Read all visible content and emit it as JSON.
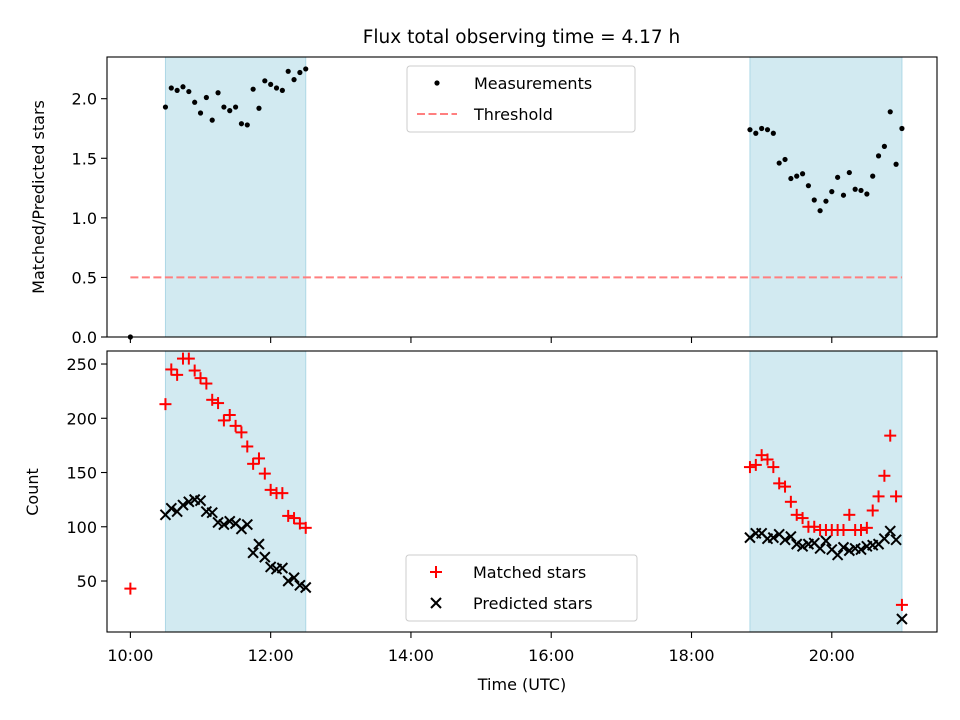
{
  "figure": {
    "title": "Flux total observing time = 4.17 h"
  },
  "chart_data": [
    {
      "type": "scatter",
      "ylabel": "Matched/Predicted stars",
      "xlim": [
        "09:40",
        "21:30"
      ],
      "ylim": [
        0,
        2.35
      ],
      "yticks": [
        0.0,
        0.5,
        1.0,
        1.5,
        2.0
      ],
      "ytick_labels": [
        "0.0",
        "0.5",
        "1.0",
        "1.5",
        "2.0"
      ],
      "shaded_intervals": [
        [
          "10:30",
          "12:30"
        ],
        [
          "18:50",
          "21:00"
        ]
      ],
      "shade_color": "#add8e6",
      "legend": {
        "position": "upper center",
        "entries": [
          "Measurements",
          "Threshold"
        ]
      },
      "threshold": {
        "name": "Threshold",
        "value": 0.5,
        "x_range": [
          "10:00",
          "21:00"
        ],
        "color": "#ff7f7f"
      },
      "series": [
        {
          "name": "Measurements",
          "color": "#000000",
          "points": [
            [
              "10:00",
              0.0
            ],
            [
              "10:30",
              1.93
            ],
            [
              "10:35",
              2.09
            ],
            [
              "10:40",
              2.07
            ],
            [
              "10:45",
              2.1
            ],
            [
              "10:50",
              2.06
            ],
            [
              "10:55",
              1.97
            ],
            [
              "11:00",
              1.88
            ],
            [
              "11:05",
              2.01
            ],
            [
              "11:10",
              1.82
            ],
            [
              "11:15",
              2.05
            ],
            [
              "11:20",
              1.93
            ],
            [
              "11:25",
              1.9
            ],
            [
              "11:30",
              1.93
            ],
            [
              "11:35",
              1.79
            ],
            [
              "11:40",
              1.78
            ],
            [
              "11:45",
              2.08
            ],
            [
              "11:50",
              1.92
            ],
            [
              "11:55",
              2.15
            ],
            [
              "12:00",
              2.12
            ],
            [
              "12:05",
              2.09
            ],
            [
              "12:10",
              2.07
            ],
            [
              "12:15",
              2.23
            ],
            [
              "12:20",
              2.16
            ],
            [
              "12:25",
              2.22
            ],
            [
              "12:30",
              2.25
            ],
            [
              "18:50",
              1.74
            ],
            [
              "18:55",
              1.71
            ],
            [
              "19:00",
              1.75
            ],
            [
              "19:05",
              1.74
            ],
            [
              "19:10",
              1.71
            ],
            [
              "19:15",
              1.46
            ],
            [
              "19:20",
              1.49
            ],
            [
              "19:25",
              1.33
            ],
            [
              "19:30",
              1.35
            ],
            [
              "19:35",
              1.37
            ],
            [
              "19:40",
              1.27
            ],
            [
              "19:45",
              1.15
            ],
            [
              "19:50",
              1.06
            ],
            [
              "19:55",
              1.14
            ],
            [
              "20:00",
              1.22
            ],
            [
              "20:05",
              1.34
            ],
            [
              "20:10",
              1.19
            ],
            [
              "20:15",
              1.38
            ],
            [
              "20:20",
              1.24
            ],
            [
              "20:25",
              1.23
            ],
            [
              "20:30",
              1.2
            ],
            [
              "20:35",
              1.35
            ],
            [
              "20:40",
              1.52
            ],
            [
              "20:45",
              1.6
            ],
            [
              "20:50",
              1.89
            ],
            [
              "20:55",
              1.45
            ],
            [
              "21:00",
              1.75
            ]
          ]
        }
      ]
    },
    {
      "type": "scatter",
      "xlabel": "Time (UTC)",
      "ylabel": "Count",
      "xlim": [
        "09:40",
        "21:30"
      ],
      "ylim": [
        3,
        262
      ],
      "xticks": [
        "10:00",
        "12:00",
        "14:00",
        "16:00",
        "18:00",
        "20:00"
      ],
      "xtick_labels": [
        "10:00",
        "12:00",
        "14:00",
        "16:00",
        "18:00",
        "20:00"
      ],
      "yticks": [
        50,
        100,
        150,
        200,
        250
      ],
      "ytick_labels": [
        "50",
        "100",
        "150",
        "200",
        "250"
      ],
      "shaded_intervals": [
        [
          "10:30",
          "12:30"
        ],
        [
          "18:50",
          "21:00"
        ]
      ],
      "shade_color": "#add8e6",
      "legend": {
        "position": "lower center",
        "entries": [
          "Matched stars",
          "Predicted stars"
        ]
      },
      "series": [
        {
          "name": "Matched stars",
          "marker": "+",
          "color": "#ff0000",
          "points": [
            [
              "10:00",
              43
            ],
            [
              "10:30",
              213
            ],
            [
              "10:35",
              245
            ],
            [
              "10:40",
              240
            ],
            [
              "10:45",
              255
            ],
            [
              "10:50",
              255
            ],
            [
              "10:55",
              244
            ],
            [
              "11:00",
              237
            ],
            [
              "11:05",
              232
            ],
            [
              "11:10",
              217
            ],
            [
              "11:15",
              214
            ],
            [
              "11:20",
              198
            ],
            [
              "11:25",
              203
            ],
            [
              "11:30",
              193
            ],
            [
              "11:35",
              187
            ],
            [
              "11:40",
              174
            ],
            [
              "11:45",
              158
            ],
            [
              "11:50",
              163
            ],
            [
              "11:55",
              149
            ],
            [
              "12:00",
              134
            ],
            [
              "12:05",
              131
            ],
            [
              "12:10",
              131
            ],
            [
              "12:15",
              110
            ],
            [
              "12:20",
              108
            ],
            [
              "12:25",
              103
            ],
            [
              "12:30",
              99
            ],
            [
              "18:50",
              155
            ],
            [
              "18:55",
              157
            ],
            [
              "19:00",
              166
            ],
            [
              "19:05",
              162
            ],
            [
              "19:10",
              155
            ],
            [
              "19:15",
              140
            ],
            [
              "19:20",
              137
            ],
            [
              "19:25",
              123
            ],
            [
              "19:30",
              111
            ],
            [
              "19:35",
              108
            ],
            [
              "19:40",
              100
            ],
            [
              "19:45",
              100
            ],
            [
              "19:50",
              97
            ],
            [
              "19:55",
              97
            ],
            [
              "20:00",
              97
            ],
            [
              "20:05",
              97
            ],
            [
              "20:10",
              97
            ],
            [
              "20:15",
              111
            ],
            [
              "20:20",
              97
            ],
            [
              "20:25",
              97
            ],
            [
              "20:30",
              99
            ],
            [
              "20:35",
              115
            ],
            [
              "20:40",
              128
            ],
            [
              "20:45",
              147
            ],
            [
              "20:50",
              184
            ],
            [
              "20:55",
              128
            ],
            [
              "21:00",
              28
            ]
          ]
        },
        {
          "name": "Predicted stars",
          "marker": "x",
          "color": "#000000",
          "points": [
            [
              "10:30",
              111
            ],
            [
              "10:35",
              117
            ],
            [
              "10:40",
              114
            ],
            [
              "10:45",
              120
            ],
            [
              "10:50",
              123
            ],
            [
              "10:55",
              125
            ],
            [
              "11:00",
              124
            ],
            [
              "11:05",
              114
            ],
            [
              "11:10",
              113
            ],
            [
              "11:15",
              104
            ],
            [
              "11:20",
              102
            ],
            [
              "11:25",
              105
            ],
            [
              "11:30",
              103
            ],
            [
              "11:35",
              98
            ],
            [
              "11:40",
              102
            ],
            [
              "11:45",
              76
            ],
            [
              "11:50",
              84
            ],
            [
              "11:55",
              72
            ],
            [
              "12:00",
              63
            ],
            [
              "12:05",
              61
            ],
            [
              "12:10",
              62
            ],
            [
              "12:15",
              50
            ],
            [
              "12:20",
              53
            ],
            [
              "12:25",
              46
            ],
            [
              "12:30",
              44
            ],
            [
              "18:50",
              90
            ],
            [
              "18:55",
              94
            ],
            [
              "19:00",
              94
            ],
            [
              "19:05",
              89
            ],
            [
              "19:10",
              90
            ],
            [
              "19:15",
              93
            ],
            [
              "19:20",
              88
            ],
            [
              "19:25",
              91
            ],
            [
              "19:30",
              84
            ],
            [
              "19:35",
              82
            ],
            [
              "19:40",
              84
            ],
            [
              "19:45",
              85
            ],
            [
              "19:50",
              80
            ],
            [
              "19:55",
              87
            ],
            [
              "20:00",
              79
            ],
            [
              "20:05",
              74
            ],
            [
              "20:10",
              81
            ],
            [
              "20:15",
              78
            ],
            [
              "20:20",
              80
            ],
            [
              "20:25",
              79
            ],
            [
              "20:30",
              82
            ],
            [
              "20:35",
              83
            ],
            [
              "20:40",
              84
            ],
            [
              "20:45",
              89
            ],
            [
              "20:50",
              96
            ],
            [
              "20:55",
              88
            ],
            [
              "21:00",
              15
            ]
          ]
        }
      ]
    }
  ]
}
